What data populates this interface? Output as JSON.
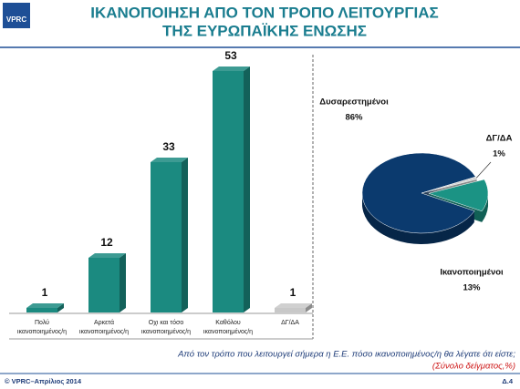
{
  "logo": "VPRC",
  "footer": {
    "left": "© VPRC–Απρίλιος 2014",
    "right": "Δ.4"
  },
  "question": "Από τον τρόπο που λειτουργεί σήμερα η Ε.Ε. πόσο ικανοποιημένος/η θα λέγατε ότι είστε;",
  "note": "(Σύνολο δείγματος,%)",
  "chart_data": [
    {
      "type": "bar",
      "title": [
        "ΙΚΑΝΟΠΟΙΗΣΗ ΑΠΟ ΤΟΝ ΤΡΟΠΟ ΛΕΙΤΟΥΡΓΙΑΣ",
        "ΤΗΣ ΕΥΡΩΠΑΪΚΗΣ ΕΝΩΣΗΣ"
      ],
      "categories": [
        "Πολύ ικανοποιημένος/η",
        "Αρκετά ικανοποιημένος/η",
        "Οχι και τόσο ικανοποιημένος/η",
        "Καθόλου ικανοποιημένος/η",
        "ΔΓ/ΔΑ"
      ],
      "values": [
        1,
        12,
        33,
        53,
        1
      ],
      "colors": [
        "#1b8a80",
        "#1b8a80",
        "#1b8a80",
        "#1b8a80",
        "#c8c8c8"
      ]
    },
    {
      "type": "pie",
      "categories": [
        "Δυσαρεστημένοι",
        "ΔΓ/ΔΑ",
        "Ικανοποιημένοι"
      ],
      "values": [
        86,
        1,
        13
      ],
      "value_labels": [
        "86%",
        "1%",
        "13%"
      ],
      "colors": [
        "#0b3a6e",
        "#d4d4d4",
        "#1b9384"
      ]
    }
  ]
}
